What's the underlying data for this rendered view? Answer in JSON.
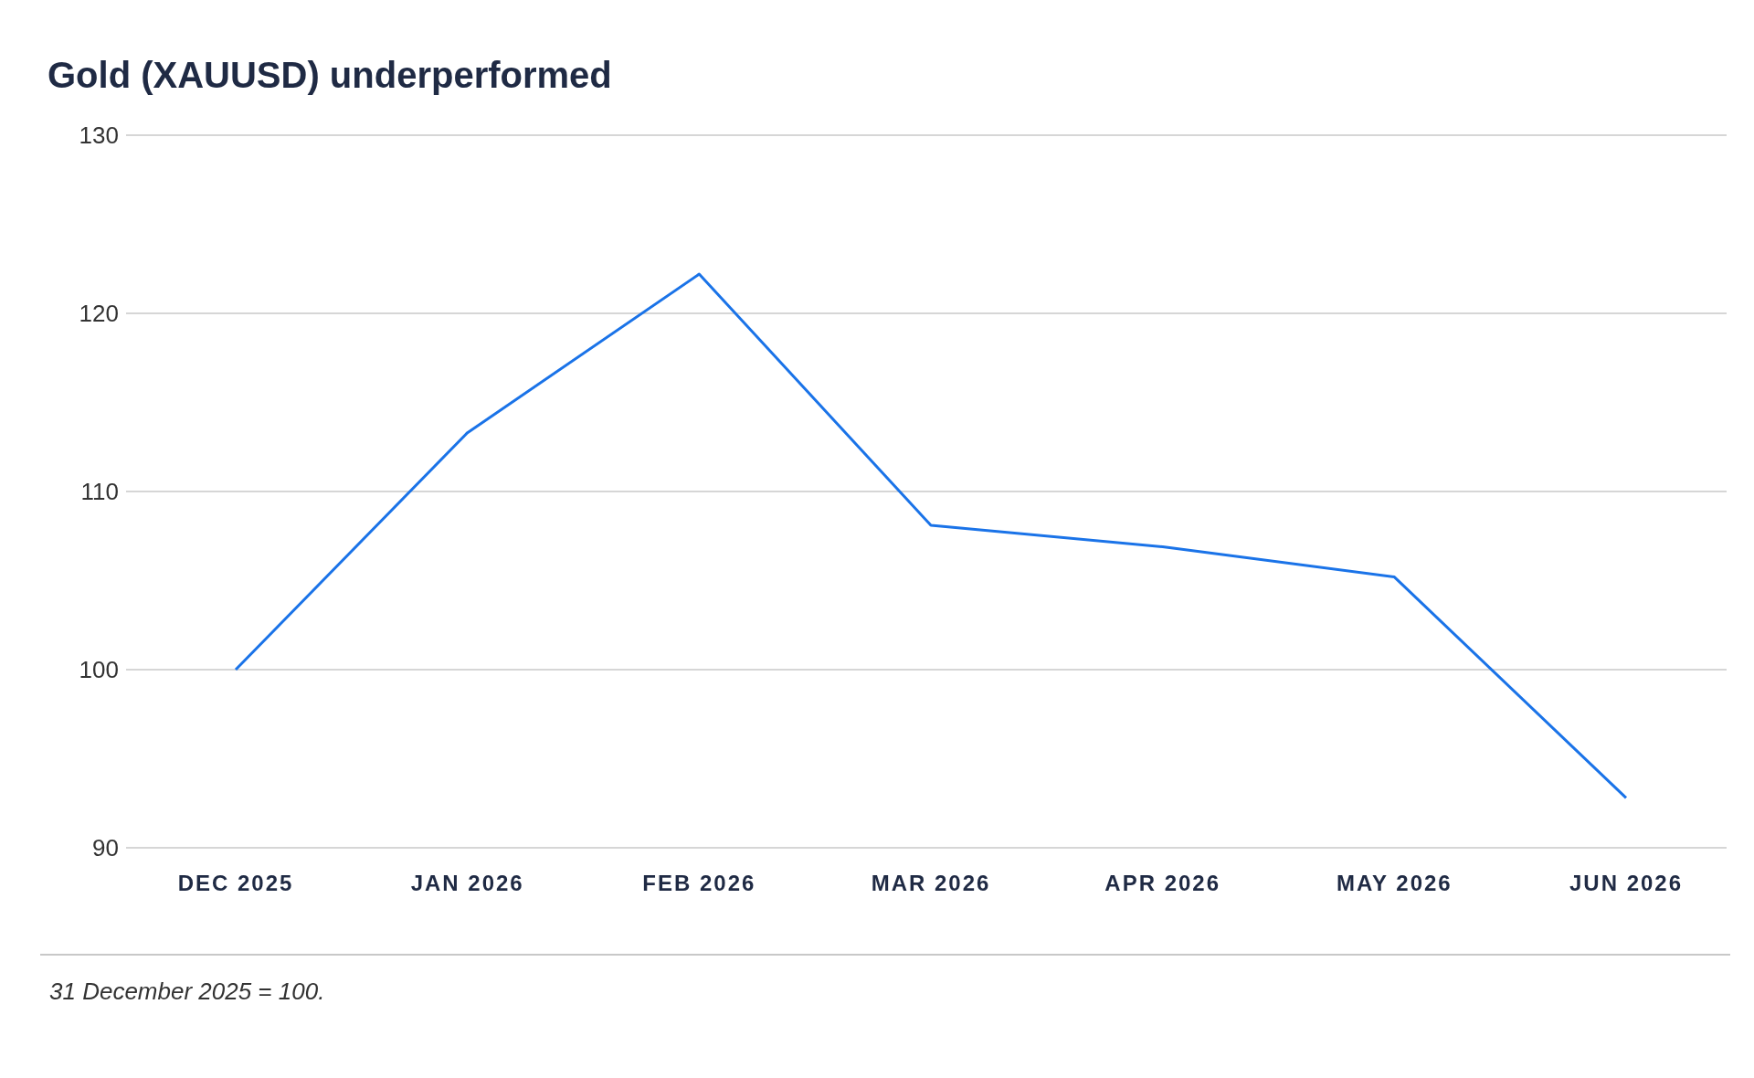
{
  "chart_data": {
    "type": "line",
    "title": "Gold (XAUUSD) underperformed",
    "categories": [
      "DEC 2025",
      "JAN 2026",
      "FEB 2026",
      "MAR 2026",
      "APR 2026",
      "MAY 2026",
      "JUN 2026"
    ],
    "series": [
      {
        "color": "#1a73e8",
        "values": [
          100,
          113.3,
          122.2,
          108.1,
          106.9,
          105.2,
          92.8
        ]
      }
    ],
    "ylim": [
      90,
      130
    ],
    "yticks": [
      90,
      100,
      110,
      120,
      130
    ],
    "grid": "y",
    "marker": "none",
    "line_style": "solid",
    "annotations": [
      "31 December 2025 = 100."
    ]
  }
}
